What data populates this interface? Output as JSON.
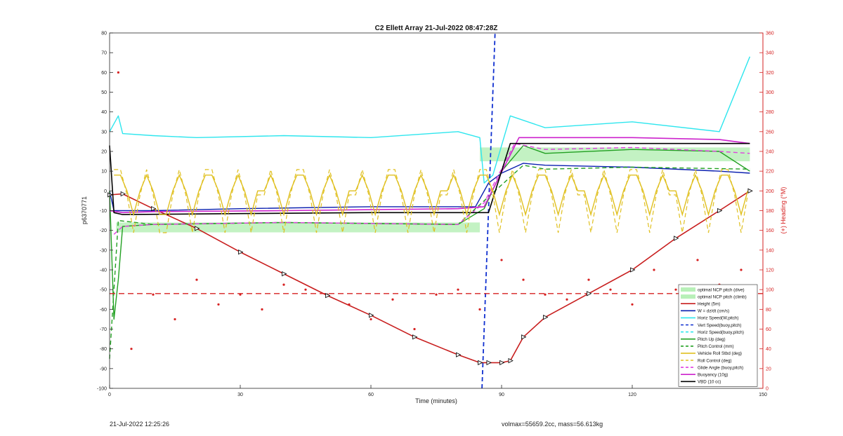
{
  "chart_data": {
    "type": "line",
    "title": "C2 Ellett Array 21-Jul-2022 08:47:28Z",
    "xlabel": "Time (minutes)",
    "ylabel_left": "p6370771",
    "ylabel_right": "(+) Heading (°M)",
    "xlim": [
      0,
      150
    ],
    "ylim_left": [
      -100,
      80
    ],
    "ylim_right": [
      0,
      360
    ],
    "xticks": [
      0,
      30,
      60,
      90,
      120,
      150
    ],
    "yticks_left": [
      -100,
      -90,
      -80,
      -70,
      -60,
      -50,
      -40,
      -30,
      -20,
      -10,
      0,
      10,
      20,
      30,
      40,
      50,
      60,
      70,
      80
    ],
    "yticks_right": [
      0,
      20,
      40,
      60,
      80,
      100,
      120,
      140,
      160,
      180,
      200,
      220,
      240,
      260,
      280,
      300,
      320,
      340,
      360
    ],
    "legend_position": "bottom-right",
    "colors": {
      "axis_right": "#d62020",
      "heading": "#d62020",
      "height": "#c81e1e",
      "wdzdt": "#0a1fb0",
      "horiz_speed": "#2ee6ee",
      "vert_speed": "#1030d0",
      "pitch": "#22a022",
      "roll": "#e0c020",
      "glide": "#e040e0",
      "buoyancy": "#cc22cc",
      "vbd": "#000000",
      "ncp_band": "#b8f0b8"
    },
    "legend": [
      "optimal NCP pitch (dive)",
      "optimal NCP pitch (climb)",
      "Height (5m)",
      "W = dz/dt (cm/s)",
      "Horiz Speed(W,pitch)",
      "Vert Speed(buoy,pitch)",
      "Horiz Speed(buoy,pitch)",
      "Pitch Up (deg)",
      "Pitch Control (mm)",
      "Vehicle Roll Stbd (deg)",
      "Roll Control (deg)",
      "Glide Angle (buoy,pitch)",
      "Buoyancy (10g)",
      "VBD (10 cc)"
    ],
    "ncp_bands": [
      {
        "name": "optimal NCP pitch (dive)",
        "x": [
          1.5,
          85
        ],
        "y": [
          -21,
          -16
        ]
      },
      {
        "name": "optimal NCP pitch (climb)",
        "x": [
          85,
          147
        ],
        "y": [
          15,
          22
        ]
      }
    ],
    "series": [
      {
        "name": "Height (5m)",
        "x": [
          0,
          3,
          10,
          20,
          30,
          40,
          50,
          60,
          70,
          80,
          85,
          87,
          90,
          92,
          95,
          100,
          110,
          120,
          130,
          140,
          147
        ],
        "y": [
          -2,
          -1.5,
          -9,
          -19,
          -31,
          -42,
          -53,
          -63,
          -74,
          -83,
          -87,
          -87,
          -87,
          -86,
          -74,
          -64,
          -52,
          -40,
          -24,
          -10,
          0
        ]
      },
      {
        "name": "W = dz/dt (cm/s)",
        "x": [
          0,
          1,
          3,
          10,
          30,
          60,
          84,
          87,
          90,
          95,
          100,
          120,
          140,
          147
        ],
        "y": [
          0,
          -10,
          -10,
          -10,
          -9,
          -8,
          -8,
          4,
          9,
          14,
          13,
          12,
          10,
          9
        ]
      },
      {
        "name": "Horiz Speed(W,pitch)",
        "x": [
          0,
          2,
          3,
          10,
          20,
          40,
          60,
          80,
          85,
          86,
          88,
          92,
          100,
          120,
          140,
          147
        ],
        "y": [
          30,
          38,
          29,
          28,
          27,
          28,
          27,
          30,
          27,
          4,
          8,
          38,
          32,
          35,
          30,
          68
        ]
      },
      {
        "name": "Vert Speed(buoy,pitch)",
        "x": [
          85.5,
          88.5
        ],
        "y": [
          -100,
          80
        ]
      },
      {
        "name": "Pitch Up (deg)",
        "x": [
          0,
          1,
          2,
          3,
          10,
          40,
          80,
          86,
          90,
          95,
          100,
          120,
          140,
          147
        ],
        "y": [
          0,
          -65,
          -45,
          -18,
          -17,
          -16,
          -17,
          -9,
          10,
          23,
          19,
          21,
          20,
          10
        ]
      },
      {
        "name": "Pitch Control (mm)",
        "x": [
          0,
          2,
          10,
          40,
          80,
          86,
          95,
          100,
          120,
          147
        ],
        "y": [
          -85,
          -15,
          -17,
          -16,
          -17,
          -5,
          13,
          11,
          12,
          11
        ]
      },
      {
        "name": "Glide Angle (buoy,pitch)",
        "x": [
          1,
          3,
          10,
          40,
          80,
          86,
          93,
          100,
          120,
          140,
          147
        ],
        "y": [
          -22,
          -18,
          -17,
          -16,
          -17,
          -6,
          24,
          21,
          22,
          20,
          19
        ]
      },
      {
        "name": "Buoyancy (10g)",
        "x": [
          0,
          3,
          10,
          40,
          80,
          86,
          94,
          120,
          140,
          147
        ],
        "y": [
          -10,
          -11,
          -10.5,
          -10,
          -9,
          -8,
          27,
          27,
          26,
          24
        ]
      },
      {
        "name": "VBD (10 cc)",
        "x": [
          0,
          1,
          3,
          30,
          60,
          84,
          87,
          92,
          97,
          98,
          120,
          147
        ],
        "y": [
          23,
          -11,
          -12,
          -11.5,
          -11,
          -11,
          -11,
          24,
          24,
          24,
          24,
          24
        ]
      },
      {
        "name": "Heading (right axis)",
        "axis": "right",
        "x": [
          2,
          5,
          10,
          15,
          20,
          25,
          30,
          35,
          40,
          45,
          50,
          55,
          60,
          65,
          70,
          75,
          80,
          85,
          90,
          95,
          100,
          105,
          110,
          115,
          120,
          125,
          130,
          135,
          140,
          145
        ],
        "y": [
          320,
          40,
          95,
          70,
          110,
          85,
          95,
          80,
          105,
          100,
          95,
          85,
          70,
          90,
          60,
          95,
          100,
          80,
          130,
          110,
          95,
          90,
          110,
          100,
          85,
          120,
          100,
          130,
          105,
          120
        ]
      }
    ],
    "reference_lines": [
      {
        "name": "Heading reference",
        "axis": "right",
        "y": 96,
        "style": "dashed"
      }
    ]
  },
  "footer": {
    "left": "21-Jul-2022 12:25:26",
    "right": "volmax=55659.2cc, mass=56.613kg"
  }
}
